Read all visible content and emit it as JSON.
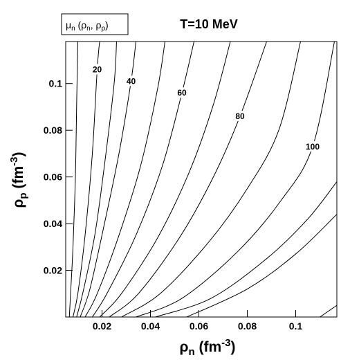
{
  "chart_data": {
    "type": "contour",
    "title": "T=10 MeV",
    "legend_parts": [
      "μ",
      "n",
      " (ρ",
      "n",
      ", ρ",
      "p",
      ")"
    ],
    "xlabel_parts": [
      "ρ",
      "n",
      " (fm",
      "-3",
      ")"
    ],
    "ylabel_parts": [
      "ρ",
      "p",
      " (fm",
      "-3",
      ")"
    ],
    "xlim": [
      0.005,
      0.117
    ],
    "ylim": [
      0,
      0.118
    ],
    "xticks": [
      0.02,
      0.04,
      0.06,
      0.08,
      0.1
    ],
    "yticks": [
      0.02,
      0.04,
      0.06,
      0.08,
      0.1
    ],
    "color": "#000000",
    "contour_labels": [
      20,
      40,
      60,
      80,
      100
    ],
    "contours": [
      {
        "level": 10,
        "x": [
          0.01,
          0.0095,
          0.009,
          0.008,
          0.007,
          0.0065
        ],
        "y": [
          0.118,
          0.09,
          0.06,
          0.03,
          0.01,
          0
        ]
      },
      {
        "level": 20,
        "x": [
          0.019,
          0.018,
          0.016,
          0.013,
          0.01,
          0.008
        ],
        "y": [
          0.118,
          0.106,
          0.07,
          0.035,
          0.01,
          0
        ]
      },
      {
        "level": 30,
        "x": [
          0.026,
          0.025,
          0.021,
          0.017,
          0.012,
          0.0095
        ],
        "y": [
          0.118,
          0.1,
          0.065,
          0.035,
          0.01,
          0
        ]
      },
      {
        "level": 40,
        "x": [
          0.034,
          0.032,
          0.027,
          0.021,
          0.015,
          0.011
        ],
        "y": [
          0.118,
          0.101,
          0.07,
          0.04,
          0.012,
          0
        ]
      },
      {
        "level": 50,
        "x": [
          0.046,
          0.043,
          0.036,
          0.027,
          0.018,
          0.013
        ],
        "y": [
          0.118,
          0.098,
          0.065,
          0.035,
          0.01,
          0
        ]
      },
      {
        "level": 60,
        "x": [
          0.058,
          0.053,
          0.045,
          0.034,
          0.022,
          0.016
        ],
        "y": [
          0.118,
          0.096,
          0.065,
          0.035,
          0.01,
          0
        ]
      },
      {
        "level": 70,
        "x": [
          0.073,
          0.066,
          0.056,
          0.043,
          0.028,
          0.019
        ],
        "y": [
          0.118,
          0.091,
          0.062,
          0.034,
          0.01,
          0
        ]
      },
      {
        "level": 80,
        "x": [
          0.088,
          0.077,
          0.066,
          0.052,
          0.035,
          0.023
        ],
        "y": [
          0.118,
          0.086,
          0.06,
          0.034,
          0.01,
          0
        ]
      },
      {
        "level": 90,
        "x": [
          0.102,
          0.093,
          0.08,
          0.064,
          0.044,
          0.028
        ],
        "y": [
          0.118,
          0.08,
          0.055,
          0.032,
          0.01,
          0
        ]
      },
      {
        "level": 100,
        "x": [
          0.116,
          0.107,
          0.094,
          0.076,
          0.053,
          0.034
        ],
        "y": [
          0.118,
          0.073,
          0.05,
          0.028,
          0.008,
          0
        ]
      },
      {
        "level": 110,
        "x": [
          0.117,
          0.105,
          0.088,
          0.065,
          0.042
        ],
        "y": [
          0.058,
          0.042,
          0.025,
          0.008,
          0
        ]
      },
      {
        "level": 120,
        "x": [
          0.117,
          0.1,
          0.08,
          0.055
        ],
        "y": [
          0.044,
          0.027,
          0.012,
          0
        ]
      },
      {
        "level": 130,
        "x": [
          0.117,
          0.11
        ],
        "y": [
          0.005,
          0
        ]
      }
    ]
  }
}
